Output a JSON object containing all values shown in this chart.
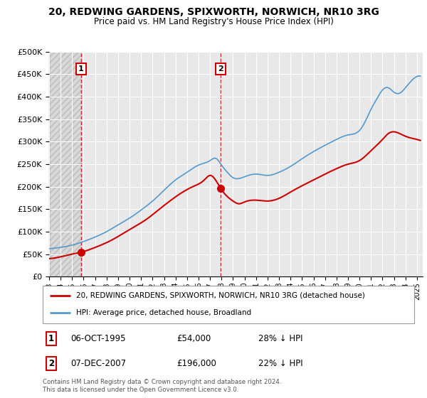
{
  "title_line1": "20, REDWING GARDENS, SPIXWORTH, NORWICH, NR10 3RG",
  "title_line2": "Price paid vs. HM Land Registry's House Price Index (HPI)",
  "background_color": "#ffffff",
  "plot_bg_color": "#e8e8e8",
  "hatch_region_end_year": 1995.8,
  "sale1": {
    "date_num": 1995.77,
    "price": 54000,
    "label": "1"
  },
  "sale2": {
    "date_num": 2007.93,
    "price": 196000,
    "label": "2"
  },
  "vline1_x": 1995.77,
  "vline2_x": 2007.93,
  "red_color": "#cc0000",
  "blue_color": "#5599cc",
  "legend_label_red": "20, REDWING GARDENS, SPIXWORTH, NORWICH, NR10 3RG (detached house)",
  "legend_label_blue": "HPI: Average price, detached house, Broadland",
  "annotation1_label": "1",
  "annotation1_date": "06-OCT-1995",
  "annotation1_price": "£54,000",
  "annotation1_hpi": "28% ↓ HPI",
  "annotation2_label": "2",
  "annotation2_date": "07-DEC-2007",
  "annotation2_price": "£196,000",
  "annotation2_hpi": "22% ↓ HPI",
  "footer": "Contains HM Land Registry data © Crown copyright and database right 2024.\nThis data is licensed under the Open Government Licence v3.0.",
  "ylim": [
    0,
    500000
  ],
  "yticks": [
    0,
    50000,
    100000,
    150000,
    200000,
    250000,
    300000,
    350000,
    400000,
    450000,
    500000
  ],
  "xlim_start": 1993.0,
  "xlim_end": 2025.5,
  "hpi_years": [
    1993.0,
    1994.0,
    1995.0,
    1996.0,
    1997.0,
    1998.0,
    1999.0,
    2000.0,
    2001.0,
    2002.0,
    2003.0,
    2004.0,
    2005.0,
    2006.0,
    2007.0,
    2007.5,
    2008.0,
    2008.5,
    2009.0,
    2009.5,
    2010.0,
    2011.0,
    2012.0,
    2013.0,
    2014.0,
    2015.0,
    2016.0,
    2017.0,
    2018.0,
    2019.0,
    2020.0,
    2020.5,
    2021.0,
    2021.5,
    2022.0,
    2022.5,
    2023.0,
    2023.5,
    2024.0,
    2024.5,
    2025.0
  ],
  "hpi_prices": [
    62000,
    65000,
    70000,
    78000,
    88000,
    100000,
    115000,
    130000,
    148000,
    168000,
    192000,
    215000,
    232000,
    248000,
    258000,
    263000,
    248000,
    232000,
    220000,
    218000,
    222000,
    228000,
    225000,
    232000,
    245000,
    262000,
    278000,
    292000,
    305000,
    315000,
    325000,
    345000,
    372000,
    395000,
    415000,
    420000,
    410000,
    408000,
    420000,
    435000,
    445000
  ],
  "red_years": [
    1993.0,
    1994.0,
    1995.0,
    1995.77,
    1996.5,
    1997.5,
    1998.5,
    1999.5,
    2000.5,
    2001.5,
    2002.5,
    2003.5,
    2004.5,
    2005.5,
    2006.5,
    2007.0,
    2007.93,
    2008.5,
    2009.0,
    2009.5,
    2010.0,
    2011.0,
    2012.0,
    2013.0,
    2014.0,
    2015.0,
    2016.0,
    2017.0,
    2018.0,
    2019.0,
    2020.0,
    2021.0,
    2022.0,
    2022.5,
    2023.0,
    2023.5,
    2024.0,
    2024.5,
    2025.0
  ],
  "red_prices": [
    40000,
    44000,
    50000,
    54000,
    60000,
    70000,
    82000,
    97000,
    112000,
    128000,
    148000,
    168000,
    186000,
    200000,
    215000,
    225000,
    196000,
    178000,
    168000,
    162000,
    166000,
    170000,
    168000,
    174000,
    188000,
    202000,
    215000,
    228000,
    240000,
    250000,
    258000,
    280000,
    305000,
    318000,
    322000,
    318000,
    312000,
    308000,
    305000
  ]
}
